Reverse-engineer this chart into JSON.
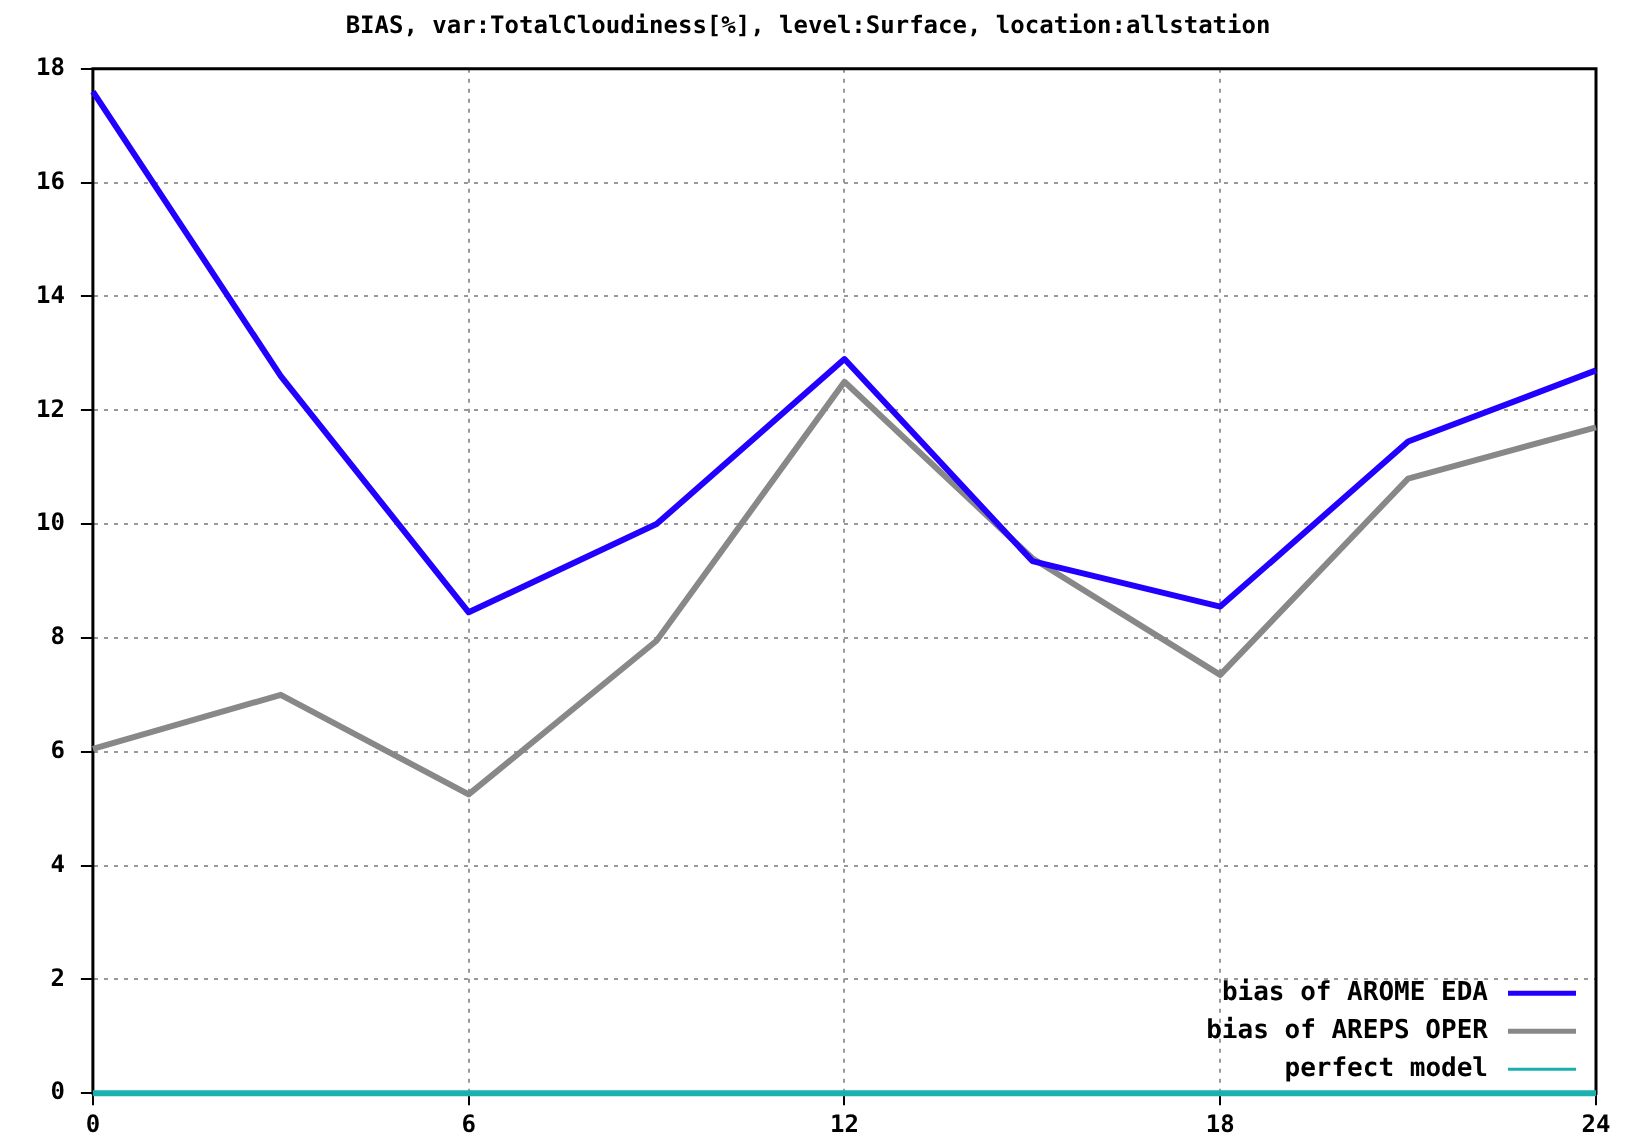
{
  "chart_data": {
    "type": "line",
    "title": "BIAS, var:TotalCloudiness[%], level:Surface, location:allstation",
    "x": [
      0,
      3,
      6,
      9,
      12,
      15,
      18,
      21,
      24
    ],
    "series": [
      {
        "name": "bias of AROME EDA",
        "color": "#2200ff",
        "values": [
          17.6,
          12.6,
          8.45,
          10.0,
          12.9,
          9.35,
          8.55,
          11.45,
          12.7
        ]
      },
      {
        "name": "bias of AREPS OPER",
        "color": "#888888",
        "values": [
          6.05,
          7.0,
          5.25,
          7.95,
          12.5,
          9.4,
          7.35,
          10.8,
          11.7
        ]
      },
      {
        "name": "perfect model",
        "color": "#1ab0b0",
        "values": [
          0,
          0,
          0,
          0,
          0,
          0,
          0,
          0,
          0
        ]
      }
    ],
    "xlim": [
      0,
      24
    ],
    "xticks": [
      0,
      6,
      12,
      18,
      24
    ],
    "ylim": [
      0,
      18
    ],
    "yticks": [
      0,
      2,
      4,
      6,
      8,
      10,
      12,
      14,
      16,
      18
    ],
    "grid": true,
    "legend": "bottom right",
    "marker": "none",
    "line_style": "solid"
  }
}
